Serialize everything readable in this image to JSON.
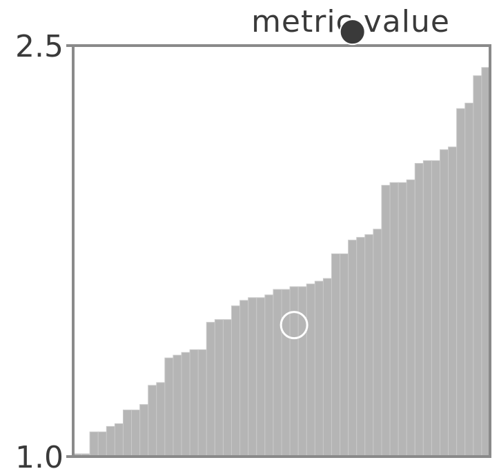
{
  "chart_data": {
    "type": "bar",
    "title": "metric value",
    "xlabel": "",
    "ylabel": "",
    "ylim": [
      1.0,
      2.5
    ],
    "yticks": [
      {
        "value": 1.0,
        "label": "1.0"
      },
      {
        "value": 2.5,
        "label": "2.5"
      }
    ],
    "grid": false,
    "legend": false,
    "bar_color": "#b5b5b5",
    "frame_color": "#8a8a8a",
    "text_color": "#3a3a3a",
    "values": [
      1.01,
      1.01,
      1.09,
      1.09,
      1.11,
      1.12,
      1.17,
      1.17,
      1.19,
      1.26,
      1.27,
      1.36,
      1.37,
      1.38,
      1.39,
      1.39,
      1.49,
      1.5,
      1.5,
      1.55,
      1.57,
      1.58,
      1.58,
      1.59,
      1.61,
      1.61,
      1.62,
      1.62,
      1.63,
      1.64,
      1.65,
      1.74,
      1.74,
      1.79,
      1.8,
      1.81,
      1.83,
      1.99,
      2.0,
      2.0,
      2.01,
      2.07,
      2.08,
      2.08,
      2.12,
      2.13,
      2.27,
      2.29,
      2.39,
      2.42
    ]
  },
  "overlays": {
    "filled_marker": {
      "x_index": 33,
      "y_value": 2.55,
      "color": "#3a3a3a"
    },
    "open_marker": {
      "x_index": 26,
      "y_value": 1.48,
      "color": "#ffffff"
    }
  }
}
